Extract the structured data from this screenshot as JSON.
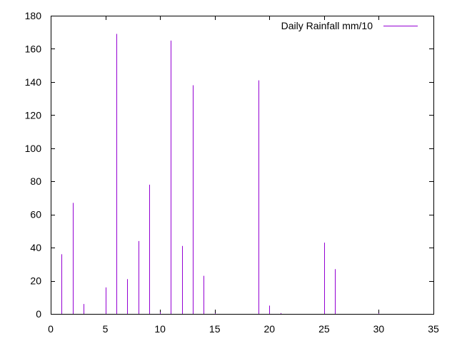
{
  "chart_data": {
    "type": "bar",
    "title": "",
    "xlabel": "",
    "ylabel": "",
    "xlim": [
      0,
      35
    ],
    "ylim": [
      0,
      180
    ],
    "x_ticks": [
      0,
      5,
      10,
      15,
      20,
      25,
      30,
      35
    ],
    "y_ticks": [
      0,
      20,
      40,
      60,
      80,
      100,
      120,
      140,
      160,
      180
    ],
    "grid": false,
    "legend_position": "top-right",
    "series": [
      {
        "name": "Daily Rainfall mm/10",
        "color": "#9400d3",
        "x": [
          1,
          2,
          3,
          5,
          6,
          7,
          8,
          9,
          10,
          11,
          12,
          13,
          14,
          15,
          19,
          20,
          21,
          25,
          26,
          30
        ],
        "values": [
          36,
          67,
          6,
          16,
          169,
          21,
          44,
          78,
          1,
          165,
          41,
          138,
          23,
          0.5,
          141,
          5,
          0.5,
          43,
          27,
          0.5
        ]
      }
    ]
  }
}
